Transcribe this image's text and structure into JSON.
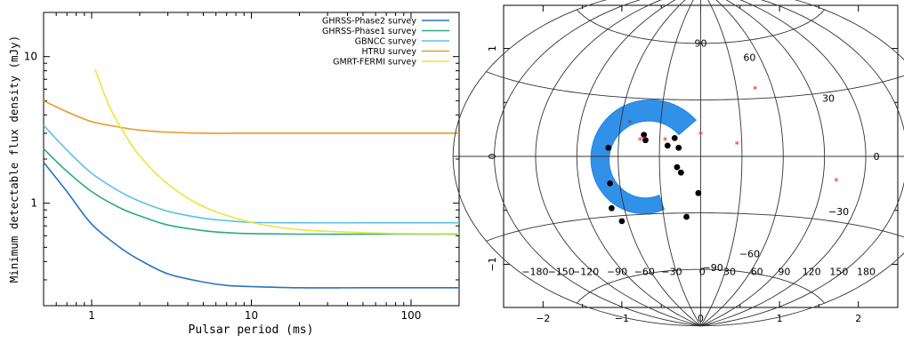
{
  "chart_data": [
    {
      "type": "line",
      "xlabel": "Pulsar period (ms)",
      "ylabel": "Minimum detectable flux density (mJy)",
      "xscale": "log",
      "yscale": "log",
      "xlim": [
        0.5,
        200
      ],
      "ylim": [
        0.2,
        20
      ],
      "x_ticks": [
        1,
        10,
        100
      ],
      "x_tick_labels": [
        "1",
        "10",
        "100"
      ],
      "y_ticks": [
        1,
        10
      ],
      "y_tick_labels": [
        "1",
        "10"
      ],
      "legend_position": "top-right",
      "grid": false,
      "series": [
        {
          "name": "GHRSS-Phase2 survey",
          "color": "#2a72c0",
          "x": [
            0.5,
            0.7,
            1,
            1.5,
            2,
            3,
            5,
            7,
            10,
            20,
            50,
            100,
            200
          ],
          "values": [
            1.9,
            1.2,
            0.72,
            0.5,
            0.41,
            0.33,
            0.29,
            0.275,
            0.27,
            0.265,
            0.265,
            0.265,
            0.265
          ]
        },
        {
          "name": "GHRSS-Phase1 survey",
          "color": "#2bab80",
          "x": [
            0.5,
            0.7,
            1,
            1.5,
            2,
            3,
            5,
            7,
            10,
            20,
            50,
            100,
            200
          ],
          "values": [
            2.35,
            1.65,
            1.2,
            0.93,
            0.82,
            0.71,
            0.65,
            0.63,
            0.62,
            0.615,
            0.615,
            0.615,
            0.615
          ]
        },
        {
          "name": "GBNCC survey",
          "color": "#5bc0ea",
          "x": [
            0.5,
            0.7,
            1,
            1.5,
            2,
            3,
            5,
            7,
            10,
            20,
            50,
            100,
            200
          ],
          "values": [
            3.4,
            2.3,
            1.6,
            1.2,
            1.03,
            0.88,
            0.79,
            0.76,
            0.74,
            0.735,
            0.735,
            0.735,
            0.735
          ]
        },
        {
          "name": "HTRU survey",
          "color": "#e59a25",
          "x": [
            0.5,
            0.7,
            1,
            1.5,
            2,
            3,
            5,
            10,
            20,
            50,
            100,
            200
          ],
          "values": [
            5.0,
            4.2,
            3.6,
            3.3,
            3.15,
            3.05,
            3.0,
            3.0,
            3.0,
            3.0,
            3.0,
            3.0
          ]
        },
        {
          "name": "GMRT-FERMI survey",
          "color": "#ede43c",
          "x": [
            1.05,
            1.3,
            1.6,
            2,
            3,
            5,
            10,
            20,
            50,
            100,
            200
          ],
          "values": [
            8.2,
            4.5,
            3.0,
            2.1,
            1.35,
            0.95,
            0.74,
            0.66,
            0.63,
            0.62,
            0.62
          ]
        }
      ]
    },
    {
      "type": "scatter",
      "xlim": [
        -2.5,
        2.5
      ],
      "ylim": [
        -1.4,
        1.4
      ],
      "x_ticks": [
        -2,
        -1,
        0,
        1,
        2
      ],
      "x_tick_labels": [
        "−2",
        "−1",
        "0",
        "1",
        "2"
      ],
      "y_ticks": [
        -1,
        0,
        1
      ],
      "y_tick_labels": [
        "−1",
        "0",
        "1"
      ],
      "projection": "Aitoff (sky map)",
      "grid": true,
      "longitude_labels": [
        "−180",
        "−150",
        "−120",
        "−90",
        "−60",
        "−30",
        "0",
        "30",
        "60",
        "90",
        "120",
        "150",
        "180"
      ],
      "latitude_labels": [
        {
          "lat": 90,
          "text": "90"
        },
        {
          "lat": 60,
          "text": "60"
        },
        {
          "lat": 30,
          "text": "30"
        },
        {
          "lat": 0,
          "text": "0"
        },
        {
          "lat": -30,
          "text": "−30"
        },
        {
          "lat": -60,
          "text": "−60"
        },
        {
          "lat": -90,
          "text": "−90"
        }
      ],
      "coverage_region": {
        "color": "#1f87e6",
        "description_shape": "arc"
      },
      "series": [
        {
          "marker": "dot",
          "color": "#000000",
          "points": [
            [
              -1.17,
              0.08
            ],
            [
              -0.72,
              0.2
            ],
            [
              -0.7,
              0.15
            ],
            [
              -0.42,
              0.1
            ],
            [
              -0.33,
              0.17
            ],
            [
              -0.28,
              0.08
            ],
            [
              -0.3,
              -0.1
            ],
            [
              -0.25,
              -0.15
            ],
            [
              -0.03,
              -0.34
            ],
            [
              -0.18,
              -0.56
            ],
            [
              -1.15,
              -0.25
            ],
            [
              -1.13,
              -0.48
            ],
            [
              -1.0,
              -0.6
            ]
          ]
        },
        {
          "marker": "star",
          "color": "#e0151c",
          "points": [
            [
              -0.9,
              0.31
            ],
            [
              -0.77,
              0.15
            ],
            [
              -0.72,
              0.16
            ],
            [
              0.0,
              0.2
            ],
            [
              0.46,
              0.11
            ],
            [
              0.69,
              0.62
            ],
            [
              1.72,
              -0.23
            ],
            [
              -0.45,
              0.15
            ]
          ]
        }
      ]
    }
  ]
}
